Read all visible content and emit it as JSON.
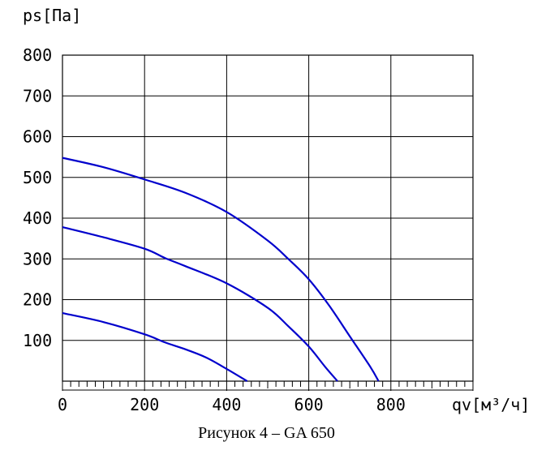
{
  "chart_data": {
    "type": "line",
    "ylabel": "ps[Па]",
    "xlabel": "qv[м³/ч]",
    "xlim": [
      0,
      1000
    ],
    "ylim": [
      0,
      800
    ],
    "x_ticks": [
      0,
      200,
      400,
      600,
      800
    ],
    "y_ticks": [
      100,
      200,
      300,
      400,
      500,
      600,
      700,
      800
    ],
    "grid": true,
    "line_color": "#0000cc",
    "series": [
      {
        "x": [
          0,
          100,
          200,
          300,
          400,
          500,
          550,
          600,
          650,
          700,
          750,
          770
        ],
        "values": [
          548,
          525,
          495,
          462,
          415,
          345,
          300,
          250,
          185,
          110,
          35,
          0
        ]
      },
      {
        "x": [
          0,
          100,
          200,
          250,
          300,
          400,
          500,
          550,
          600,
          640,
          670
        ],
        "values": [
          378,
          353,
          325,
          302,
          282,
          240,
          180,
          135,
          85,
          35,
          0
        ]
      },
      {
        "x": [
          0,
          100,
          200,
          250,
          300,
          350,
          400,
          450
        ],
        "values": [
          167,
          145,
          115,
          95,
          78,
          58,
          30,
          0
        ]
      }
    ]
  },
  "caption": "Рисунок 4 – GA 650"
}
